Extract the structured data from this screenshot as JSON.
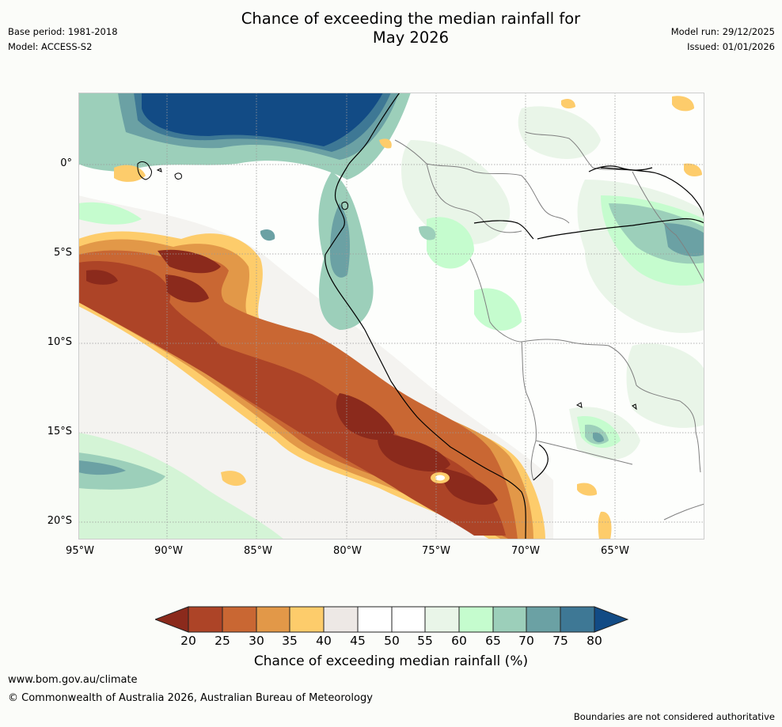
{
  "header": {
    "title_line1": "Chance of exceeding the median rainfall for",
    "title_line2": "May 2026",
    "base_period": "Base period: 1981-2018",
    "model": "Model: ACCESS-S2",
    "model_run": "Model run: 29/12/2025",
    "issued": "Issued: 01/01/2026"
  },
  "map": {
    "lat_labels": [
      "0°",
      "5°S",
      "10°S",
      "15°S",
      "20°S"
    ],
    "lon_labels": [
      "95°W",
      "90°W",
      "85°W",
      "80°W",
      "75°W",
      "70°W",
      "65°W"
    ]
  },
  "colorbar": {
    "ticks": [
      "20",
      "25",
      "30",
      "35",
      "40",
      "45",
      "50",
      "55",
      "60",
      "65",
      "70",
      "75",
      "80"
    ],
    "title": "Chance of exceeding median rainfall (%)",
    "colors": {
      "below_20": "#8b2a1c",
      "c20_25": "#ad4427",
      "c25_30": "#c96733",
      "c30_35": "#e29848",
      "c35_40": "#fdcc6b",
      "c40_45": "#ede8e5",
      "c45_50": "#ffffff",
      "c50_55": "#ffffff",
      "c55_60": "#e9f5e8",
      "c60_65": "#c5fcce",
      "c65_70": "#9ccfba",
      "c70_75": "#6ba1a4",
      "c75_80": "#3e7895",
      "above_80": "#124b85"
    }
  },
  "footer": {
    "url": "www.bom.gov.au/climate",
    "copyright": "© Commonwealth of Australia 2026, Australian Bureau of Meteorology",
    "disclaimer": "Boundaries are not considered authoritative"
  }
}
